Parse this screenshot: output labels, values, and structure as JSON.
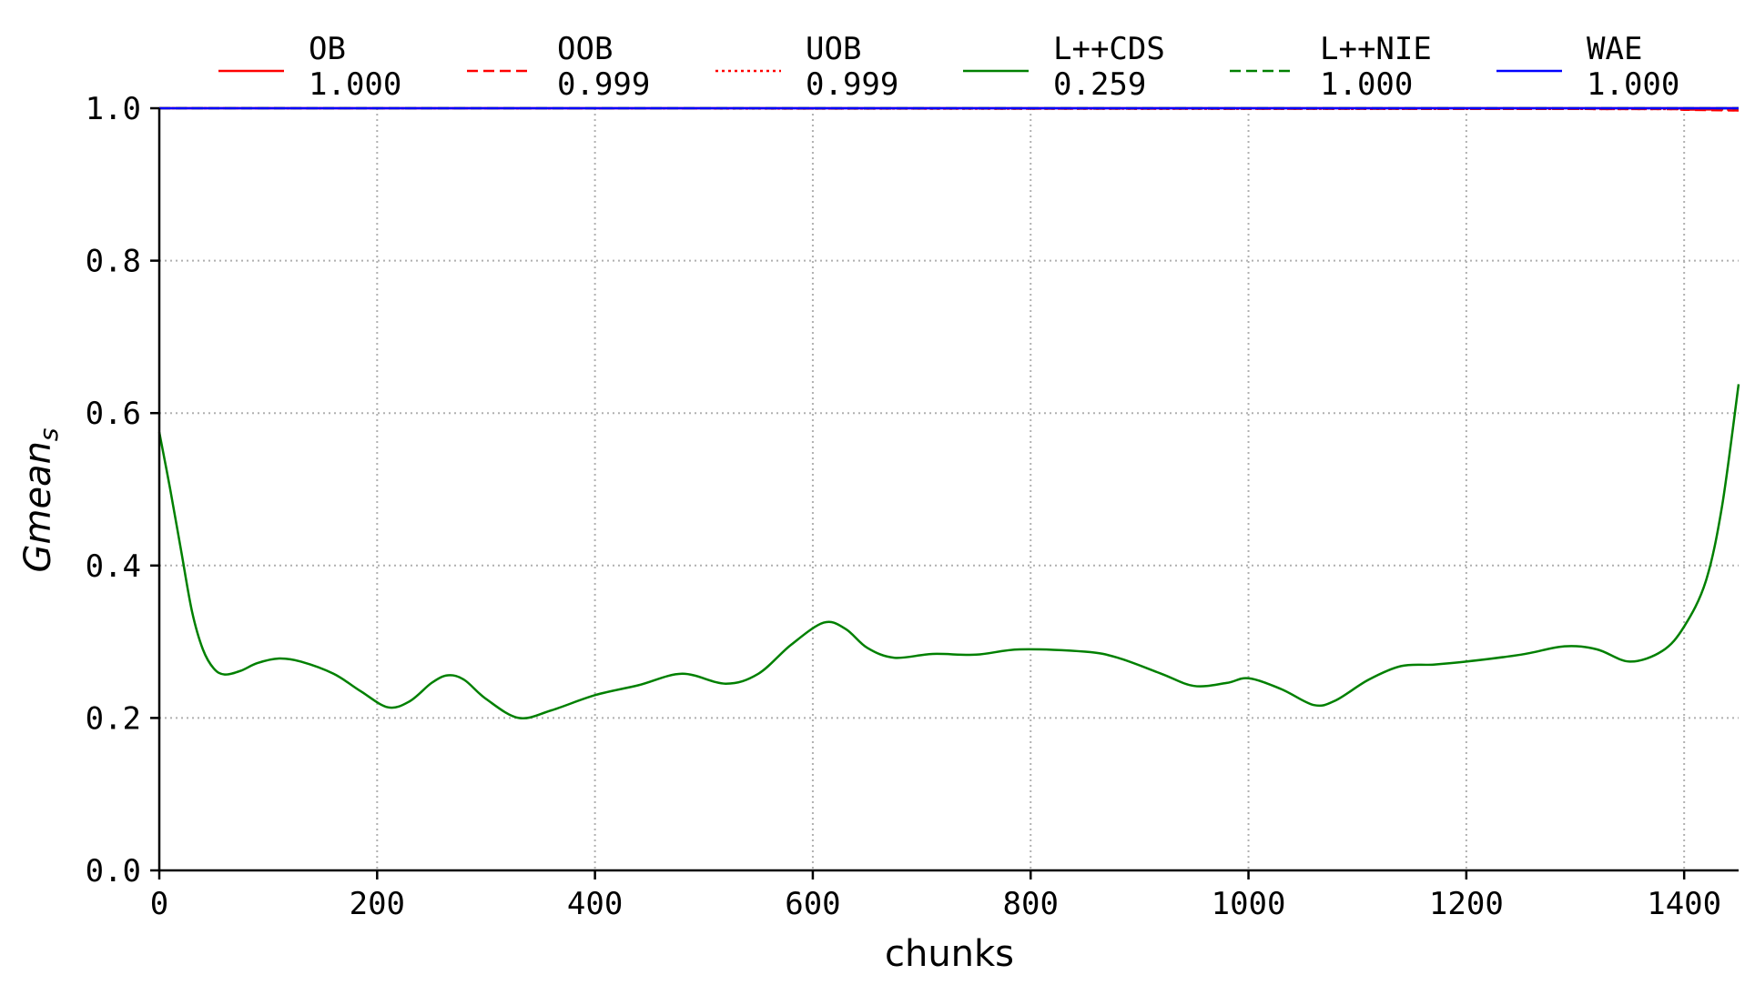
{
  "chart_data": {
    "type": "line",
    "xlabel": "chunks",
    "ylabel_base": "Gmean",
    "ylabel_sub": "s",
    "xlim": [
      0,
      1450
    ],
    "ylim": [
      0.0,
      1.0
    ],
    "xticks": [
      "0",
      "200",
      "400",
      "600",
      "800",
      "1000",
      "1200",
      "1400"
    ],
    "xtick_values": [
      0,
      200,
      400,
      600,
      800,
      1000,
      1200,
      1400
    ],
    "yticks": [
      "0.0",
      "0.2",
      "0.4",
      "0.6",
      "0.8",
      "1.0"
    ],
    "ytick_values": [
      0.0,
      0.2,
      0.4,
      0.6,
      0.8,
      1.0
    ],
    "grid": true,
    "legend_position": "top",
    "series": [
      {
        "name": "OB",
        "score": "1.000",
        "color": "#ff0000",
        "dash": "solid",
        "x": [
          0,
          1450
        ],
        "y": [
          1.0,
          1.0
        ]
      },
      {
        "name": "OOB",
        "score": "0.999",
        "color": "#ff0000",
        "dash": "dashed",
        "x": [
          0,
          1300,
          1400,
          1450
        ],
        "y": [
          1.0,
          0.999,
          0.998,
          0.997
        ]
      },
      {
        "name": "UOB",
        "score": "0.999",
        "color": "#ff0000",
        "dash": "dotted",
        "x": [
          0,
          1300,
          1400,
          1450
        ],
        "y": [
          1.0,
          0.999,
          0.999,
          0.998
        ]
      },
      {
        "name": "L++CDS",
        "score": "0.259",
        "color": "#008000",
        "dash": "solid",
        "x": [
          0,
          10,
          20,
          30,
          40,
          50,
          60,
          75,
          90,
          110,
          130,
          160,
          185,
          210,
          230,
          250,
          265,
          280,
          300,
          330,
          360,
          400,
          440,
          480,
          520,
          550,
          580,
          610,
          630,
          650,
          675,
          710,
          750,
          790,
          850,
          880,
          920,
          950,
          980,
          1000,
          1030,
          1060,
          1080,
          1110,
          1140,
          1170,
          1200,
          1250,
          1290,
          1320,
          1350,
          1380,
          1400,
          1420,
          1435,
          1450
        ],
        "y": [
          0.575,
          0.5,
          0.42,
          0.34,
          0.29,
          0.265,
          0.257,
          0.262,
          0.272,
          0.278,
          0.274,
          0.258,
          0.235,
          0.214,
          0.222,
          0.246,
          0.256,
          0.25,
          0.225,
          0.2,
          0.21,
          0.23,
          0.243,
          0.258,
          0.245,
          0.258,
          0.296,
          0.325,
          0.317,
          0.292,
          0.279,
          0.284,
          0.283,
          0.29,
          0.287,
          0.279,
          0.258,
          0.242,
          0.246,
          0.252,
          0.238,
          0.217,
          0.223,
          0.25,
          0.268,
          0.27,
          0.274,
          0.283,
          0.294,
          0.29,
          0.274,
          0.288,
          0.32,
          0.38,
          0.48,
          0.638
        ]
      },
      {
        "name": "L++NIE",
        "score": "1.000",
        "color": "#008000",
        "dash": "dashed",
        "x": [
          0,
          1450
        ],
        "y": [
          1.0,
          1.0
        ]
      },
      {
        "name": "WAE",
        "score": "1.000",
        "color": "#0000ff",
        "dash": "solid",
        "x": [
          0,
          1450
        ],
        "y": [
          1.0,
          1.0
        ]
      }
    ]
  }
}
